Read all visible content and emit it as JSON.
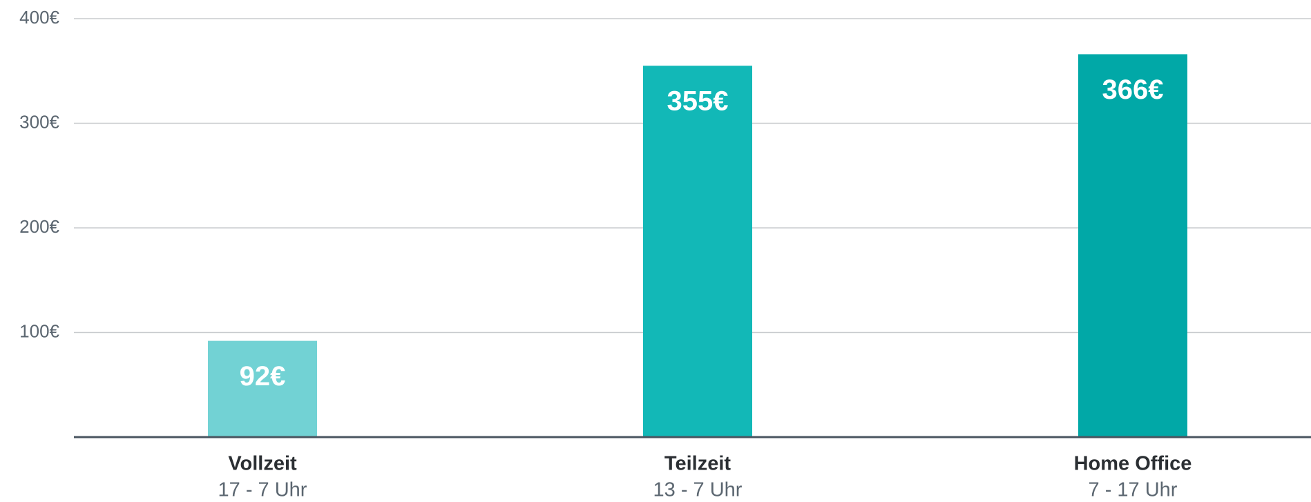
{
  "chart_data": {
    "type": "bar",
    "categories": [
      "Vollzeit",
      "Teilzeit",
      "Home Office"
    ],
    "sublabels": [
      "17 - 7 Uhr",
      "13 - 7 Uhr",
      "7 - 17 Uhr"
    ],
    "values": [
      92,
      355,
      366
    ],
    "value_labels": [
      "92€",
      "355€",
      "366€"
    ],
    "colors": [
      "#72d2d4",
      "#12b8b7",
      "#01a8a7"
    ],
    "ylim": [
      0,
      400
    ],
    "yticks": [
      {
        "value": 100,
        "label": "100€"
      },
      {
        "value": 200,
        "label": "200€"
      },
      {
        "value": 300,
        "label": "300€"
      },
      {
        "value": 400,
        "label": "400€"
      }
    ],
    "grid": true
  }
}
